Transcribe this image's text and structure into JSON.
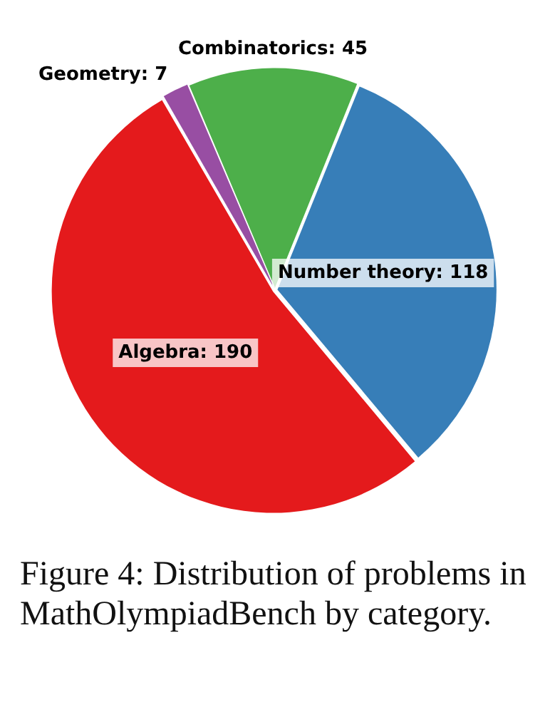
{
  "chart_data": {
    "type": "pie",
    "categories": [
      "Algebra",
      "Geometry",
      "Combinatorics",
      "Number theory"
    ],
    "values": [
      190,
      7,
      45,
      118
    ],
    "colors": [
      "#e41a1c",
      "#984ea3",
      "#4daf4a",
      "#377eb8"
    ],
    "value_labels": [
      ": 190",
      ": 7",
      ": 45",
      ": 118"
    ],
    "legend": false,
    "annotations": [
      "Figure 4: Distribution of problems in MathOlympiadBench by category."
    ]
  }
}
